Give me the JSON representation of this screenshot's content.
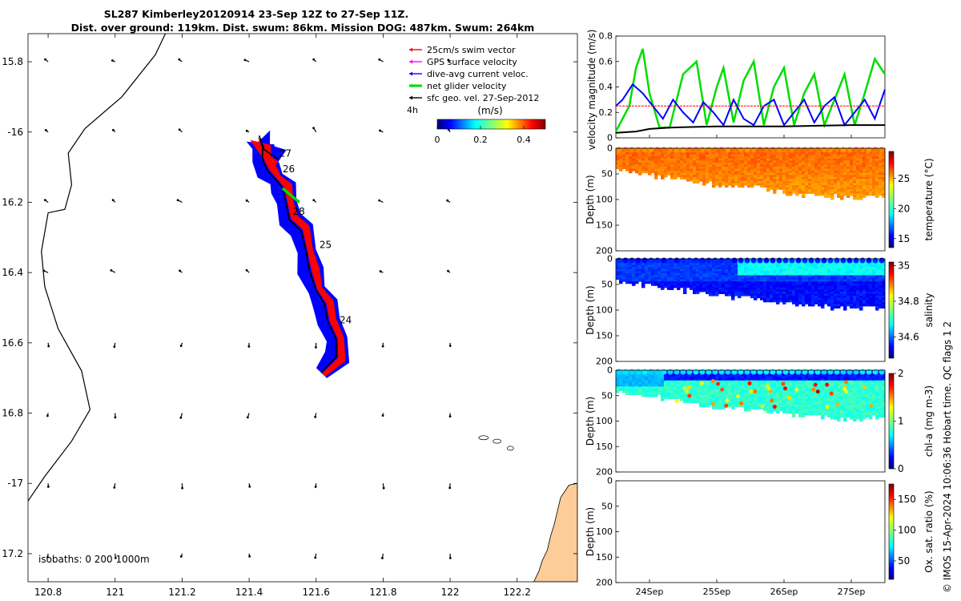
{
  "header": {
    "title_line1": "SL287 Kimberley20120914 23-Sep 12Z to 27-Sep 11Z.",
    "title_line2": "Dist. over ground: 119km. Dist. swum: 86km. Mission DOG: 487km. Swum: 264km"
  },
  "credit": "© IMOS 15-Apr-2024 10:06:36 Hobart time. QC flags 1  2",
  "colors": {
    "swim_vector": "#ff0000",
    "gps_surface_velocity": "#ff00ff",
    "dive_avg_current": "#0000ff",
    "net_glider_velocity": "#00dd00",
    "sfc_geo_vel": "#000000",
    "land": "#fccc99",
    "glider_envelope_blue": "#0000ff",
    "glider_envelope_red": "#ff0000"
  },
  "chart_data": [
    {
      "id": "map",
      "type": "scatter",
      "xlim": [
        120.74,
        122.38
      ],
      "ylim": [
        -17.28,
        -15.72
      ],
      "xticks": [
        120.8,
        121,
        121.2,
        121.4,
        121.6,
        121.8,
        122,
        122.2
      ],
      "xtick_labels": [
        "120.8",
        "121",
        "121.2",
        "121.4",
        "121.6",
        "121.8",
        "122",
        "122.2"
      ],
      "yticks": [
        -15.8,
        -16,
        -16.2,
        -16.4,
        -16.6,
        -16.8,
        -17,
        -17.2
      ],
      "ytick_labels": [
        "15.8",
        "-16",
        "16.2",
        "16.4",
        "16.6",
        "16.8",
        "-17",
        "17.2"
      ],
      "legend": {
        "position": "top-right",
        "entries": [
          {
            "label": "25cm/s swim vector",
            "color": "#ff0000"
          },
          {
            "label": "GPS surface velocity",
            "color": "#ff00ff"
          },
          {
            "label": "dive-avg current veloc.",
            "color": "#0000ff"
          },
          {
            "label": "net glider velocity",
            "color": "#00dd00"
          },
          {
            "label": "sfc geo. vel. 27-Sep-2012",
            "color": "#000000"
          }
        ],
        "interval_label": "4h"
      },
      "colorbar": {
        "label": "(m/s)",
        "ticks": [
          0,
          0.2,
          0.4
        ],
        "tick_labels": [
          "0",
          "0.2",
          "0.4"
        ],
        "range": [
          0,
          0.5
        ]
      },
      "isobaths_label": "isobaths: 0   200  1000m",
      "day_labels": [
        {
          "text": "27",
          "lon": 121.49,
          "lat": -16.07
        },
        {
          "text": "26",
          "lon": 121.5,
          "lat": -16.115
        },
        {
          "text": "28",
          "lon": 121.53,
          "lat": -16.235
        },
        {
          "text": "25",
          "lon": 121.61,
          "lat": -16.33
        },
        {
          "text": "24",
          "lon": 121.67,
          "lat": -16.545
        }
      ],
      "glider_track": [
        [
          121.615,
          -16.685
        ],
        [
          121.66,
          -16.64
        ],
        [
          121.66,
          -16.59
        ],
        [
          121.635,
          -16.54
        ],
        [
          121.625,
          -16.49
        ],
        [
          121.6,
          -16.45
        ],
        [
          121.58,
          -16.395
        ],
        [
          121.57,
          -16.34
        ],
        [
          121.555,
          -16.28
        ],
        [
          121.52,
          -16.25
        ],
        [
          121.51,
          -16.2
        ],
        [
          121.5,
          -16.16
        ],
        [
          121.48,
          -16.135
        ],
        [
          121.455,
          -16.11
        ],
        [
          121.44,
          -16.08
        ],
        [
          121.44,
          -16.04
        ],
        [
          121.43,
          -16.01
        ],
        [
          121.445,
          -16.05
        ],
        [
          121.49,
          -16.08
        ]
      ],
      "coastline": [
        [
          120.74,
          -17.05
        ],
        [
          120.79,
          -16.98
        ],
        [
          120.87,
          -16.88
        ],
        [
          120.925,
          -16.79
        ],
        [
          120.9,
          -16.68
        ],
        [
          120.83,
          -16.56
        ],
        [
          120.79,
          -16.44
        ],
        [
          120.78,
          -16.34
        ],
        [
          120.8,
          -16.23
        ],
        [
          120.85,
          -16.22
        ],
        [
          120.87,
          -16.15
        ],
        [
          120.86,
          -16.06
        ],
        [
          120.91,
          -15.99
        ],
        [
          121.02,
          -15.9
        ],
        [
          121.12,
          -15.78
        ],
        [
          121.15,
          -15.72
        ]
      ],
      "sfc_geo_velocity_grid": {
        "lons": [
          120.8,
          121,
          121.2,
          121.4,
          121.6,
          121.8,
          122
        ],
        "lats": [
          -15.8,
          -16,
          -16.2,
          -16.4,
          -16.6,
          -16.8,
          -17,
          -17.2
        ]
      }
    },
    {
      "id": "velocity",
      "type": "line",
      "ylabel": "velocity magnitude (m/s)",
      "ylim": [
        0,
        0.8
      ],
      "yticks": [
        0,
        0.2,
        0.4,
        0.6,
        0.8
      ],
      "xlim": [
        23.5,
        27.5
      ],
      "series": [
        {
          "color": "#00dd00",
          "x": [
            23.5,
            23.7,
            23.8,
            23.9,
            24.0,
            24.15,
            24.3,
            24.5,
            24.7,
            24.85,
            25.0,
            25.1,
            25.25,
            25.4,
            25.55,
            25.7,
            25.85,
            26.0,
            26.15,
            26.3,
            26.45,
            26.6,
            26.75,
            26.9,
            27.05,
            27.2,
            27.35,
            27.5
          ],
          "y": [
            0.05,
            0.25,
            0.55,
            0.7,
            0.35,
            0.08,
            0.08,
            0.5,
            0.6,
            0.1,
            0.4,
            0.55,
            0.12,
            0.45,
            0.6,
            0.1,
            0.4,
            0.55,
            0.1,
            0.35,
            0.5,
            0.1,
            0.3,
            0.5,
            0.1,
            0.35,
            0.62,
            0.5
          ]
        },
        {
          "color": "#0000ff",
          "x": [
            23.5,
            23.6,
            23.75,
            23.9,
            24.05,
            24.2,
            24.35,
            24.5,
            24.65,
            24.8,
            24.95,
            25.1,
            25.25,
            25.4,
            25.55,
            25.7,
            25.85,
            26.0,
            26.15,
            26.3,
            26.45,
            26.6,
            26.75,
            26.9,
            27.05,
            27.2,
            27.35,
            27.5
          ],
          "y": [
            0.25,
            0.3,
            0.42,
            0.35,
            0.25,
            0.15,
            0.3,
            0.2,
            0.12,
            0.28,
            0.2,
            0.1,
            0.3,
            0.15,
            0.1,
            0.25,
            0.3,
            0.1,
            0.2,
            0.3,
            0.12,
            0.25,
            0.32,
            0.1,
            0.2,
            0.3,
            0.15,
            0.38
          ]
        },
        {
          "color": "#000000",
          "x": [
            23.5,
            23.8,
            24.0,
            24.3,
            24.6,
            25.0,
            25.5,
            26.0,
            26.5,
            27.0,
            27.5
          ],
          "y": [
            0.04,
            0.05,
            0.07,
            0.08,
            0.085,
            0.09,
            0.09,
            0.09,
            0.095,
            0.1,
            0.1
          ]
        },
        {
          "color": "#ff0000",
          "x": [
            23.5,
            27.5
          ],
          "y": [
            0.25,
            0.25
          ]
        }
      ]
    },
    {
      "id": "temperature",
      "type": "heatmap",
      "ylabel": "Depth (m)",
      "ylim": [
        0,
        200
      ],
      "yticks": [
        0,
        50,
        100,
        150,
        200
      ],
      "colorbar": {
        "label": "temperature (°C)",
        "ticks": [
          15,
          20,
          25
        ],
        "tick_labels": [
          "15",
          "20",
          "25"
        ],
        "range": [
          13.5,
          29.5
        ]
      },
      "value_range_plotted": [
        26,
        29
      ],
      "max_depth_profile": {
        "x": [
          23.5,
          24,
          24.5,
          25,
          25.5,
          26,
          26.5,
          27,
          27.5
        ],
        "depth": [
          40,
          50,
          60,
          70,
          75,
          85,
          90,
          95,
          90
        ]
      }
    },
    {
      "id": "salinity",
      "type": "heatmap",
      "ylabel": "Depth (m)",
      "ylim": [
        0,
        200
      ],
      "yticks": [
        0,
        50,
        100,
        150,
        200
      ],
      "colorbar": {
        "label": "salinity",
        "ticks": [
          34.6,
          34.8,
          35
        ],
        "tick_labels": [
          "34.6",
          "34.8",
          "35"
        ],
        "range": [
          34.48,
          35.02
        ]
      },
      "max_depth_profile": {
        "x": [
          23.5,
          24,
          24.5,
          25,
          25.5,
          26,
          26.5,
          27,
          27.5
        ],
        "depth": [
          40,
          50,
          60,
          70,
          75,
          85,
          90,
          95,
          90
        ]
      }
    },
    {
      "id": "chlorophyll",
      "type": "heatmap",
      "ylabel": "Depth (m)",
      "ylim": [
        0,
        200
      ],
      "yticks": [
        0,
        50,
        100,
        150,
        200
      ],
      "colorbar": {
        "label": "chl-a (mg m-3)",
        "ticks": [
          0,
          1,
          2
        ],
        "tick_labels": [
          "0",
          "1",
          "2"
        ],
        "range": [
          0,
          2
        ]
      },
      "max_depth_profile": {
        "x": [
          23.5,
          24,
          24.5,
          25,
          25.5,
          26,
          26.5,
          27,
          27.5
        ],
        "depth": [
          40,
          50,
          60,
          70,
          75,
          85,
          90,
          95,
          90
        ]
      }
    },
    {
      "id": "oxygen",
      "type": "heatmap",
      "ylabel": "Depth (m)",
      "ylim": [
        0,
        200
      ],
      "yticks": [
        0,
        50,
        100,
        150,
        200
      ],
      "xlim": [
        23.5,
        27.5
      ],
      "xticks": [
        24,
        25,
        26,
        27
      ],
      "xtick_labels": [
        "24Sep",
        "25Sep",
        "26Sep",
        "27Sep"
      ],
      "colorbar": {
        "label": "Ox. sat. ratio (%)",
        "ticks": [
          50,
          100,
          150
        ],
        "tick_labels": [
          "50",
          "100",
          "150"
        ],
        "range": [
          20,
          175
        ]
      }
    }
  ]
}
